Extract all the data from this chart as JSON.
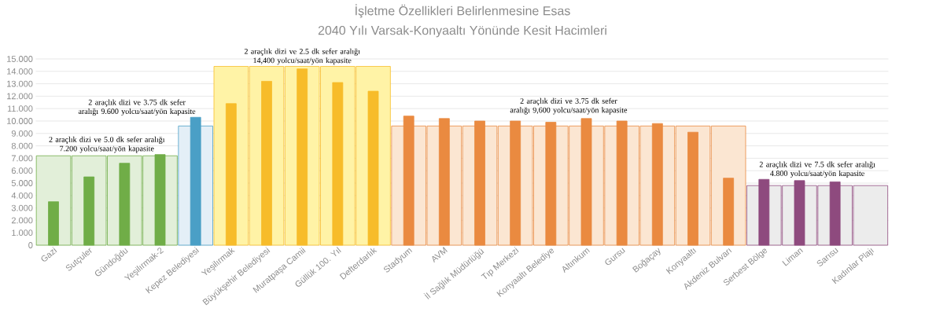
{
  "chart_data": {
    "type": "bar",
    "title": "İşletme Özellikleri Belirlenmesine Esas",
    "subtitle": "2040 Yılı Varsak-Konyaaltı Yönünde Kesit Hacimleri",
    "categories": [
      "Gazi",
      "Sutçuler",
      "Gündoğdu",
      "Yeşilırmak-2",
      "Kepez Belediyesi",
      "Yeşilırmak",
      "Büyükşehir Belediyesi",
      "Muratpaşa Camii",
      "Güllük 100. Yıl",
      "Defterdarlık",
      "Stadyum",
      "AVM",
      "İl Sağlık Müdürlüğü",
      "Tıp Merkezi",
      "Konyaaltı Belediye",
      "Altınkum",
      "Gursu",
      "Boğaçay",
      "Konyaaltı",
      "Akdeniz Bulvarı",
      "Serbest Bölge",
      "Liman",
      "Sarısu",
      "Kadınlar Plajı"
    ],
    "series": [
      {
        "values": [
          7.2,
          7.2,
          7.2,
          7.2,
          9.6,
          14.4,
          14.4,
          14.4,
          14.4,
          14.4,
          9.6,
          9.6,
          9.6,
          9.6,
          9.6,
          9.6,
          9.6,
          9.6,
          9.6,
          9.6,
          4.8,
          4.8,
          4.8,
          4.8
        ],
        "colors": [
          "#e2efd9",
          "#e2efd9",
          "#e2efd9",
          "#e2efd9",
          "#e4eff7",
          "#fff3a6",
          "#fff3a6",
          "#fff3a6",
          "#fff3a6",
          "#fff3a6",
          "#fbe6d2",
          "#fbe6d2",
          "#fbe6d2",
          "#fbe6d2",
          "#fbe6d2",
          "#fbe6d2",
          "#fbe6d2",
          "#fbe6d2",
          "#fbe6d2",
          "#fbe6d2",
          "#ececec",
          "#ececec",
          "#ececec",
          "#ececec"
        ]
      },
      {
        "values": [
          3.5,
          5.5,
          6.6,
          7.3,
          10.3,
          11.4,
          13.2,
          14.2,
          13.1,
          12.4,
          10.4,
          10.2,
          10.0,
          10.0,
          9.9,
          10.2,
          10.0,
          9.8,
          9.1,
          5.4,
          5.3,
          5.2,
          5.1,
          null
        ],
        "colors": [
          "#70ad47",
          "#70ad47",
          "#70ad47",
          "#70ad47",
          "#4a9fc6",
          "#f7bc2a",
          "#f7bc2a",
          "#f7bc2a",
          "#f7bc2a",
          "#f7bc2a",
          "#ea8a40",
          "#ea8a40",
          "#ea8a40",
          "#ea8a40",
          "#ea8a40",
          "#ea8a40",
          "#ea8a40",
          "#ea8a40",
          "#ea8a40",
          "#ea8a40",
          "#8e4a7e",
          "#8e4a7e",
          "#8e4a7e",
          "#8e4a7e"
        ]
      }
    ],
    "ylim": [
      0,
      15
    ],
    "yticks": [
      0,
      {
        "value": 1,
        "label": "1.000"
      },
      {
        "value": 2,
        "label": "2.000"
      },
      {
        "value": 3,
        "label": "3.000"
      },
      {
        "value": 4,
        "label": "4.000"
      },
      {
        "value": 5,
        "label": "5.000"
      },
      {
        "value": 6,
        "label": "6.000"
      },
      {
        "value": 7,
        "label": "7.000"
      },
      {
        "value": 8,
        "label": "8.000"
      },
      {
        "value": 9,
        "label": "9.000"
      },
      {
        "value": 10,
        "label": "10.000"
      },
      {
        "value": 11,
        "label": "11.000"
      },
      {
        "value": 12,
        "label": "12.000"
      },
      {
        "value": 13,
        "label": "13.000"
      },
      {
        "value": 14,
        "label": "14.000"
      },
      {
        "value": 15,
        "label": "15.000"
      }
    ],
    "grid": "y",
    "annotations": [
      {
        "text": "2 araçlık dizi ve 5.0 dk sefer aralığı 7.200 yolcu/saat/yön kapasite",
        "x": "Sutçuler",
        "y": 7.2
      },
      {
        "text": "2 araçlık dizi ve 3.75 dk sefer aralığı 9.600 yolcu/saat/yön kapasite",
        "x": "Kepez Belediyesi",
        "y": 9.6
      },
      {
        "text": "2 araçlık dizi ve 2.5 dk sefer aralığı 14,400 yolcu/saat/yön kapasite",
        "x": "Muratpaşa Camii",
        "y": 14.4
      },
      {
        "text": "2 araçlık dizi ve 3.75 dk sefer aralığı 9,600 yolcu/saat/yön kapasite",
        "x": "Tıp Merkezi",
        "y": 9.6
      },
      {
        "text": "2 araçlık dizi ve 7.5 dk sefer aralığı 4.800 yolcu/saat/yön kapasite",
        "x": "Liman",
        "y": 4.8
      }
    ]
  }
}
